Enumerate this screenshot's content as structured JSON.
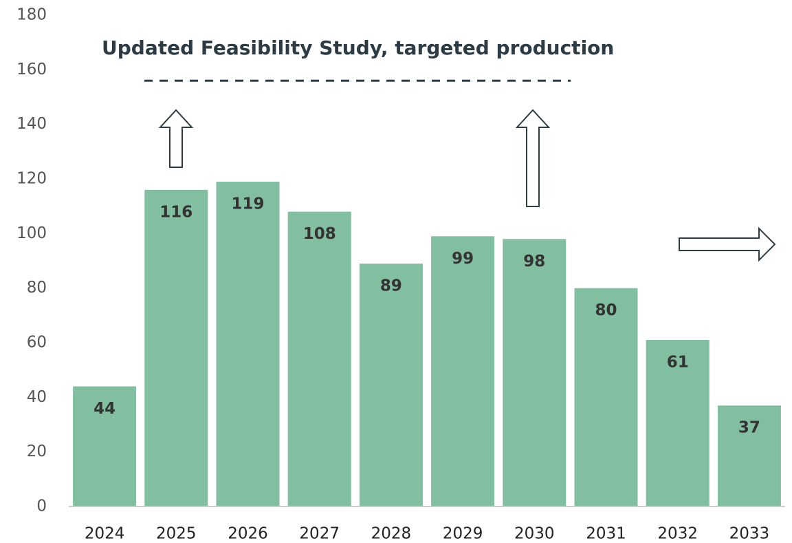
{
  "chart_data": {
    "type": "bar",
    "categories": [
      "2024",
      "2025",
      "2026",
      "2027",
      "2028",
      "2029",
      "2030",
      "2031",
      "2032",
      "2033"
    ],
    "values": [
      44,
      116,
      119,
      108,
      89,
      99,
      98,
      80,
      61,
      37
    ],
    "color": "#82bfa0",
    "ylim": [
      0,
      180
    ],
    "yticks": [
      0,
      20,
      40,
      60,
      80,
      100,
      120,
      140,
      160,
      180
    ],
    "annotation": {
      "text": "Updated Feasibility Study, targeted production",
      "value": 156
    }
  }
}
